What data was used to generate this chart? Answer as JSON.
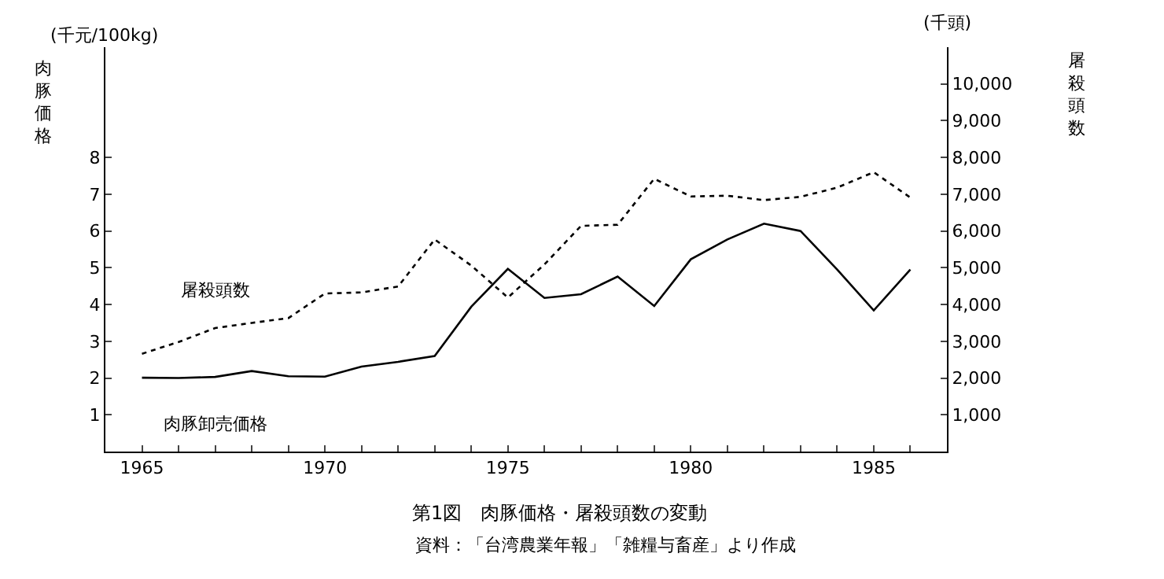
{
  "chart_data": {
    "type": "line",
    "title": "第1図　肉豚価格・屠殺頭数の変動",
    "ylabel": "肉豚価格",
    "y2label": "屠殺頭数",
    "annotations": [
      "(千元/100kg)",
      "(千頭)",
      "資料：「台湾農業年報」「雑糧与畜産」より作成"
    ],
    "x": [
      1965,
      1966,
      1967,
      1968,
      1969,
      1970,
      1971,
      1972,
      1973,
      1974,
      1975,
      1976,
      1977,
      1978,
      1979,
      1980,
      1981,
      1982,
      1983,
      1984,
      1985,
      1986
    ],
    "series": [
      {
        "name": "屠殺頭数",
        "color": "#000000",
        "axis": "y2",
        "line_style": "dotted",
        "values": [
          2660,
          2980,
          3360,
          3500,
          3630,
          4300,
          4330,
          4490,
          5770,
          5060,
          4190,
          5090,
          6140,
          6170,
          7420,
          6940,
          6960,
          6840,
          6930,
          7180,
          7600,
          6910
        ]
      },
      {
        "name": "肉豚卸売価格",
        "color": "#000000",
        "line_style": "solid",
        "values": [
          2.01,
          2.0,
          2.03,
          2.19,
          2.05,
          2.04,
          2.31,
          2.44,
          2.6,
          3.94,
          4.97,
          4.18,
          4.28,
          4.76,
          3.96,
          5.23,
          5.77,
          6.2,
          6.0,
          4.95,
          3.84,
          4.95
        ]
      }
    ],
    "xlim": [
      1964,
      1987
    ],
    "xticks": [
      1965,
      {
        "value": 1966,
        "label": null
      },
      {
        "value": 1967,
        "label": null
      },
      {
        "value": 1968,
        "label": null
      },
      {
        "value": 1969,
        "label": null
      },
      1970,
      {
        "value": 1971,
        "label": null
      },
      {
        "value": 1972,
        "label": null
      },
      {
        "value": 1973,
        "label": null
      },
      {
        "value": 1974,
        "label": null
      },
      1975,
      {
        "value": 1976,
        "label": null
      },
      {
        "value": 1977,
        "label": null
      },
      {
        "value": 1978,
        "label": null
      },
      {
        "value": 1979,
        "label": null
      },
      1980,
      {
        "value": 1981,
        "label": null
      },
      {
        "value": 1982,
        "label": null
      },
      {
        "value": 1983,
        "label": null
      },
      {
        "value": 1984,
        "label": null
      },
      1985,
      {
        "value": 1986,
        "label": null
      }
    ],
    "ylim": [
      0,
      11
    ],
    "yticks": [
      1,
      2,
      3,
      4,
      5,
      6,
      7,
      8
    ],
    "y2lim": [
      0,
      11000
    ],
    "y2ticks": [
      {
        "value": 1000,
        "label": "1,000"
      },
      {
        "value": 2000,
        "label": "2,000"
      },
      {
        "value": 3000,
        "label": "3,000"
      },
      {
        "value": 4000,
        "label": "4,000"
      },
      {
        "value": 5000,
        "label": "5,000"
      },
      {
        "value": 6000,
        "label": "6,000"
      },
      {
        "value": 7000,
        "label": "7,000"
      },
      {
        "value": 8000,
        "label": "8,000"
      },
      {
        "value": 9000,
        "label": "9,000"
      },
      {
        "value": 10000,
        "label": "10,000"
      }
    ],
    "legend": false,
    "marker": "none"
  }
}
